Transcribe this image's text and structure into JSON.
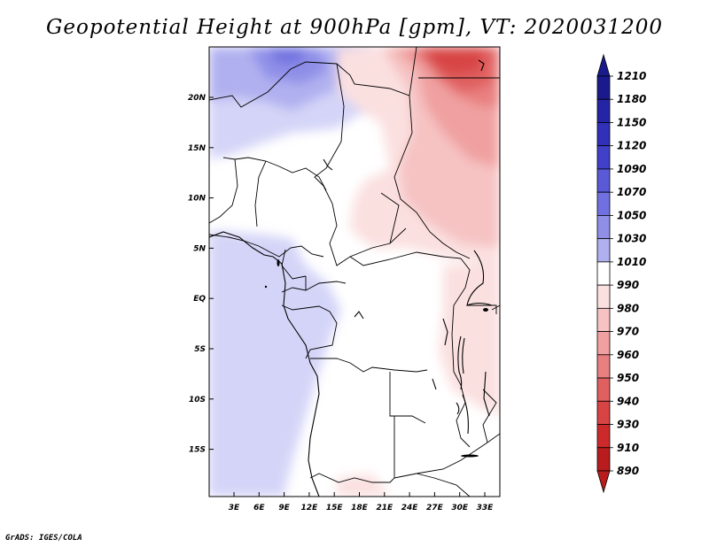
{
  "title": "Geopotential Height at 900hPa [gpm], VT: 2020031200",
  "credit": "GrADS: IGES/COLA",
  "map": {
    "lat_labels": [
      "20N",
      "15N",
      "10N",
      "5N",
      "EQ",
      "5S",
      "10S",
      "15S"
    ],
    "lon_labels": [
      "3E",
      "6E",
      "9E",
      "12E",
      "15E",
      "18E",
      "21E",
      "24E",
      "27E",
      "30E",
      "33E"
    ],
    "lat_range": [
      -20,
      24.5
    ],
    "lon_range": [
      0,
      35
    ]
  },
  "colorbar": {
    "levels": [
      "1210",
      "1180",
      "1150",
      "1120",
      "1090",
      "1070",
      "1050",
      "1030",
      "1010",
      "990",
      "980",
      "970",
      "960",
      "950",
      "940",
      "930",
      "910",
      "890"
    ],
    "colors": [
      "#1a1a8c",
      "#2424a6",
      "#3030b8",
      "#4040c8",
      "#5a5ad6",
      "#7070e0",
      "#8f8fe8",
      "#b0b0f0",
      "#d4d4f8",
      "#ffffff",
      "#fbe0e0",
      "#f6c2c2",
      "#f0a0a0",
      "#e98080",
      "#e06060",
      "#d84444",
      "#cc2a2a",
      "#b81c1c"
    ]
  }
}
